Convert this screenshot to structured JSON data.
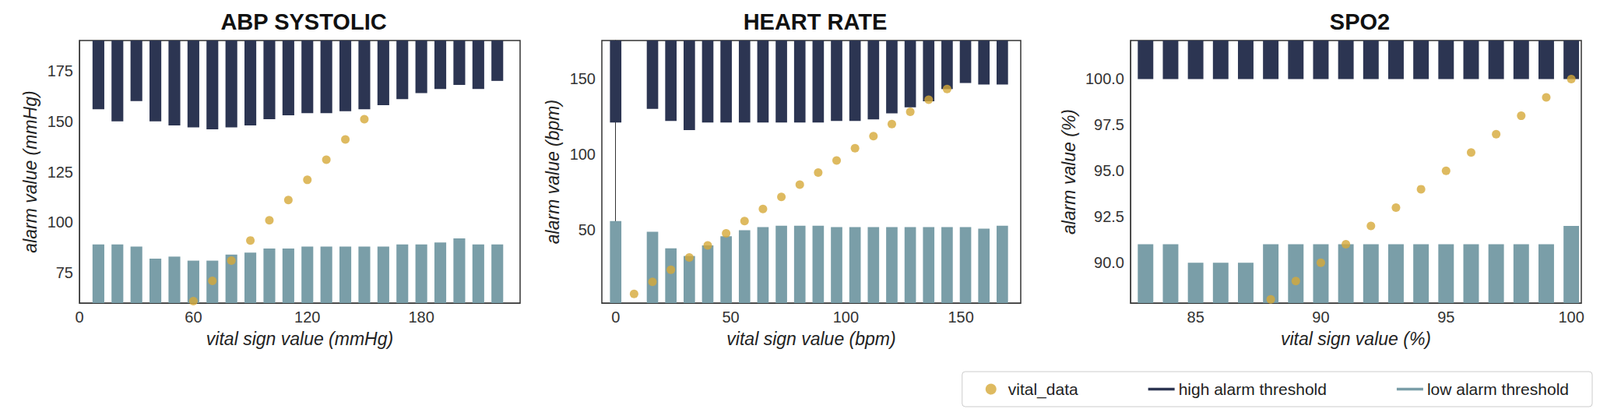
{
  "chart_data": [
    {
      "type": "bar",
      "title": "ABP SYSTOLIC",
      "x_label": "vital sign value (mmHg)",
      "y_label": "alarm value (mmHg)",
      "xlim": [
        0,
        232
      ],
      "ylim": [
        60,
        190
      ],
      "xticks": [
        0,
        60,
        120,
        180
      ],
      "yticks": [
        75,
        100,
        125,
        150,
        175
      ],
      "grid": false,
      "series": [
        {
          "name": "vital_data",
          "type": "scatter",
          "color": "#d6a938",
          "marker": "circle",
          "x": [
            60,
            70,
            80,
            90,
            100,
            110,
            120,
            130,
            140,
            150
          ],
          "values": [
            61,
            71,
            81,
            91,
            101,
            111,
            121,
            131,
            141,
            151
          ]
        },
        {
          "name": "high alarm threshold",
          "type": "bar",
          "color": "#2c3552",
          "x": [
            10,
            20,
            30,
            40,
            50,
            60,
            70,
            80,
            90,
            100,
            110,
            120,
            130,
            140,
            150,
            160,
            170,
            180,
            190,
            200,
            210,
            220
          ],
          "values": [
            156,
            150,
            160,
            150,
            148,
            147,
            146,
            147,
            148,
            151,
            153,
            154,
            154,
            155,
            156,
            158,
            161,
            164,
            166,
            168,
            166,
            170
          ]
        },
        {
          "name": "low alarm threshold",
          "type": "bar",
          "color": "#7a9ea8",
          "x": [
            10,
            20,
            30,
            40,
            50,
            60,
            70,
            80,
            90,
            100,
            110,
            120,
            130,
            140,
            150,
            160,
            170,
            180,
            190,
            200,
            210,
            220
          ],
          "values": [
            89,
            89,
            88,
            82,
            83,
            81,
            81,
            84,
            85,
            87,
            87,
            88,
            88,
            88,
            88,
            88,
            89,
            89,
            90,
            92,
            89,
            89
          ]
        }
      ]
    },
    {
      "type": "bar",
      "title": "HEART RATE",
      "x_label": "vital sign value (bpm)",
      "y_label": "alarm value (bpm)",
      "xlim": [
        -6,
        176
      ],
      "ylim": [
        2,
        175
      ],
      "xticks": [
        0,
        50,
        100,
        150
      ],
      "yticks": [
        50,
        100,
        150
      ],
      "grid": false,
      "series": [
        {
          "name": "vital_data",
          "type": "scatter",
          "color": "#d6a938",
          "marker": "circle",
          "x": [
            8,
            16,
            24,
            32,
            40,
            48,
            56,
            64,
            72,
            80,
            88,
            96,
            104,
            112,
            120,
            128,
            136,
            144
          ],
          "values": [
            8,
            16,
            24,
            32,
            40,
            48,
            56,
            64,
            72,
            80,
            88,
            96,
            104,
            112,
            120,
            128,
            136,
            143
          ]
        },
        {
          "name": "high alarm threshold",
          "type": "bar",
          "color": "#2c3552",
          "x": [
            0,
            16,
            24,
            32,
            40,
            48,
            56,
            64,
            72,
            80,
            88,
            96,
            104,
            112,
            120,
            128,
            136,
            144,
            152,
            160,
            168
          ],
          "values": [
            121,
            130,
            122,
            116,
            121,
            121,
            121,
            121,
            121,
            121,
            121,
            122,
            122,
            123,
            127,
            131,
            135,
            143,
            147,
            146,
            146
          ]
        },
        {
          "name": "low alarm threshold",
          "type": "bar",
          "color": "#7a9ea8",
          "x": [
            0,
            16,
            24,
            32,
            40,
            48,
            56,
            64,
            72,
            80,
            88,
            96,
            104,
            112,
            120,
            128,
            136,
            144,
            152,
            160,
            168
          ],
          "values": [
            56,
            49,
            38,
            33,
            40,
            46,
            50,
            52,
            53,
            53,
            53,
            52,
            52,
            52,
            52,
            52,
            52,
            52,
            52,
            51,
            53
          ]
        }
      ]
    },
    {
      "type": "bar",
      "title": "SPO2",
      "x_label": "vital sign value (%)",
      "y_label": "alarm value (%)",
      "xlim": [
        82.4,
        100.4
      ],
      "ylim": [
        87.8,
        102.1
      ],
      "xticks": [
        85,
        90,
        95,
        100
      ],
      "yticks": [
        {
          "value": 90,
          "label": "90.0"
        },
        {
          "value": 92.5,
          "label": "92.5"
        },
        {
          "value": 95,
          "label": "95.0"
        },
        {
          "value": 97.5,
          "label": "97.5"
        },
        {
          "value": 100,
          "label": "100.0"
        }
      ],
      "grid": false,
      "legend": "lower right",
      "series": [
        {
          "name": "vital_data",
          "type": "scatter",
          "color": "#d6a938",
          "marker": "circle",
          "x": [
            88,
            89,
            90,
            91,
            92,
            93,
            94,
            95,
            96,
            97,
            98,
            99,
            100
          ],
          "values": [
            88,
            89,
            90,
            91,
            92,
            93,
            94,
            95,
            96,
            97,
            98,
            99,
            100
          ]
        },
        {
          "name": "high alarm threshold",
          "type": "bar",
          "color": "#2c3552",
          "x": [
            83,
            84,
            85,
            86,
            87,
            88,
            89,
            90,
            91,
            92,
            93,
            94,
            95,
            96,
            97,
            98,
            99,
            100
          ],
          "values": [
            100,
            100,
            100,
            100,
            100,
            100,
            100,
            100,
            100,
            100,
            100,
            100,
            100,
            100,
            100,
            100,
            100,
            100
          ]
        },
        {
          "name": "low alarm threshold",
          "type": "bar",
          "color": "#7a9ea8",
          "x": [
            83,
            84,
            85,
            86,
            87,
            88,
            89,
            90,
            91,
            92,
            93,
            94,
            95,
            96,
            97,
            98,
            99,
            100
          ],
          "values": [
            91,
            91,
            90,
            90,
            90,
            91,
            91,
            91,
            91,
            91,
            91,
            91,
            91,
            91,
            91,
            91,
            91,
            92
          ]
        }
      ]
    }
  ]
}
